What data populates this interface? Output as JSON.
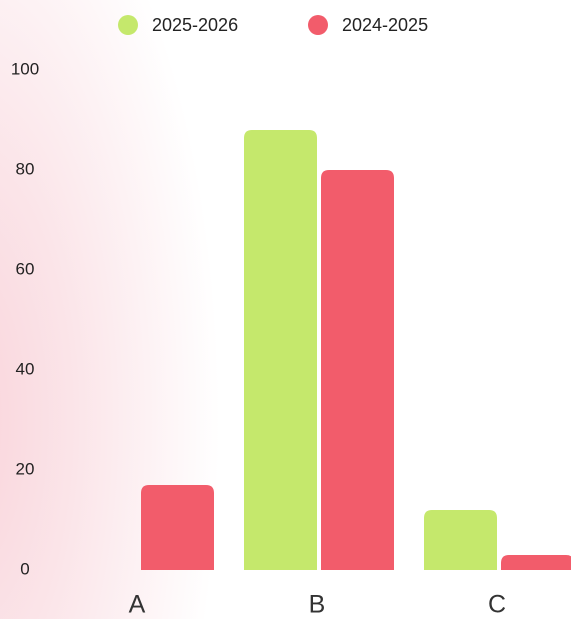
{
  "chart_data": {
    "type": "bar",
    "categories": [
      "A",
      "B",
      "C"
    ],
    "series": [
      {
        "name": "2025-2026",
        "color": "#c5e86c",
        "values": [
          0,
          88,
          12
        ]
      },
      {
        "name": "2024-2025",
        "color": "#f25c6b",
        "values": [
          17,
          80,
          3
        ]
      }
    ],
    "ylim": [
      0,
      100
    ],
    "yticks": [
      0,
      20,
      40,
      60,
      80,
      100
    ],
    "grid": false,
    "legend": "top"
  }
}
